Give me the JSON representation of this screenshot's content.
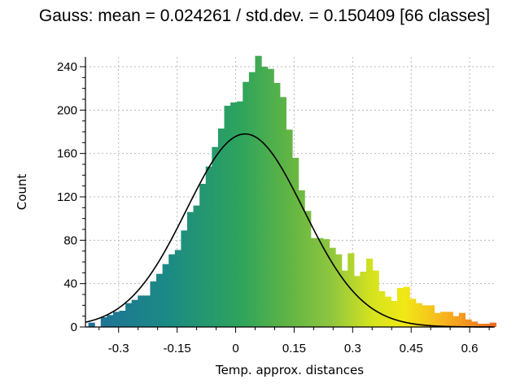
{
  "chart_data": {
    "type": "bar",
    "title": "Gauss: mean = 0.024261 / std.dev. = 0.150409 [66 classes]",
    "xlabel": "Temp. approx. distances",
    "ylabel": "Count",
    "xlim": [
      -0.385,
      0.66
    ],
    "ylim": [
      0,
      250
    ],
    "xticks": [
      -0.3,
      -0.15,
      0,
      0.15,
      0.3,
      0.45,
      0.6
    ],
    "xtick_labels": [
      "-0.3",
      "-0.15",
      "0",
      "0.15",
      "0.3",
      "0.45",
      "0.6"
    ],
    "yticks": [
      0,
      40,
      80,
      120,
      160,
      200,
      240
    ],
    "ytick_labels": [
      "0",
      "40",
      "80",
      "120",
      "160",
      "200",
      "240"
    ],
    "grid": true,
    "bin_start": -0.3775,
    "bin_width": 0.01583,
    "counts": [
      4,
      0,
      9,
      11,
      14,
      15,
      22,
      25,
      29,
      29,
      42,
      49,
      58,
      67,
      71,
      89,
      106,
      112,
      132,
      148,
      166,
      183,
      204,
      207,
      208,
      226,
      235,
      250,
      240,
      238,
      225,
      212,
      182,
      156,
      126,
      107,
      82,
      82,
      81,
      73,
      67,
      52,
      68,
      47,
      51,
      63,
      52,
      33,
      28,
      24,
      36,
      37,
      26,
      22,
      20,
      20,
      13,
      14,
      14,
      10,
      13,
      7,
      5,
      3,
      3,
      4
    ],
    "gauss_curve": {
      "mean": 0.024261,
      "std": 0.150409,
      "peak": 178
    }
  }
}
